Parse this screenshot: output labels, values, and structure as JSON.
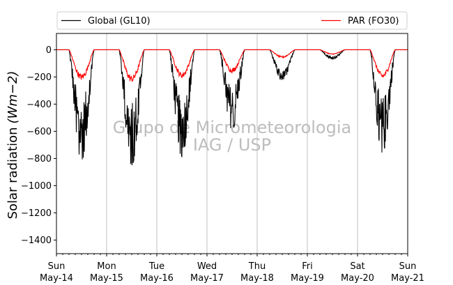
{
  "chart_data": {
    "type": "line",
    "ylabel": "Solar radiation",
    "ylabel_math": "(Wm−2)",
    "ylim": [
      -1500,
      120
    ],
    "yticks": [
      0,
      -200,
      -400,
      -600,
      -800,
      -1000,
      -1200,
      -1400
    ],
    "xlim": [
      "2023-05-14",
      "2023-05-21"
    ],
    "x_ticks": [
      {
        "day": "Sun",
        "date": "May-14"
      },
      {
        "day": "Mon",
        "date": "May-15"
      },
      {
        "day": "Tue",
        "date": "May-16"
      },
      {
        "day": "Wed",
        "date": "May-17"
      },
      {
        "day": "Thu",
        "date": "May-18"
      },
      {
        "day": "Fri",
        "date": "May-19"
      },
      {
        "day": "Sat",
        "date": "May-20"
      },
      {
        "day": "Sun",
        "date": "May-21"
      }
    ],
    "grid": "vertical at day boundaries",
    "legend_placement": "top",
    "watermark": [
      "Grupo de Micrometeorologia",
      "IAG / USP"
    ],
    "series": [
      {
        "name": "Global (GL10)",
        "color": "#000000",
        "daily_peaks": [
          {
            "day": "May-14",
            "min": -820
          },
          {
            "day": "May-15",
            "min": -850
          },
          {
            "day": "May-16",
            "min": -790
          },
          {
            "day": "May-17",
            "min": -590
          },
          {
            "day": "May-18",
            "min": -230
          },
          {
            "day": "May-19",
            "min": -70
          },
          {
            "day": "May-20",
            "min": -760
          }
        ]
      },
      {
        "name": "PAR (FO30)",
        "color": "#ff0000",
        "daily_peaks": [
          {
            "day": "May-14",
            "min": -225
          },
          {
            "day": "May-15",
            "min": -240
          },
          {
            "day": "May-16",
            "min": -210
          },
          {
            "day": "May-17",
            "min": -170
          },
          {
            "day": "May-18",
            "min": -60
          },
          {
            "day": "May-19",
            "min": -35
          },
          {
            "day": "May-20",
            "min": -215
          }
        ]
      }
    ]
  }
}
